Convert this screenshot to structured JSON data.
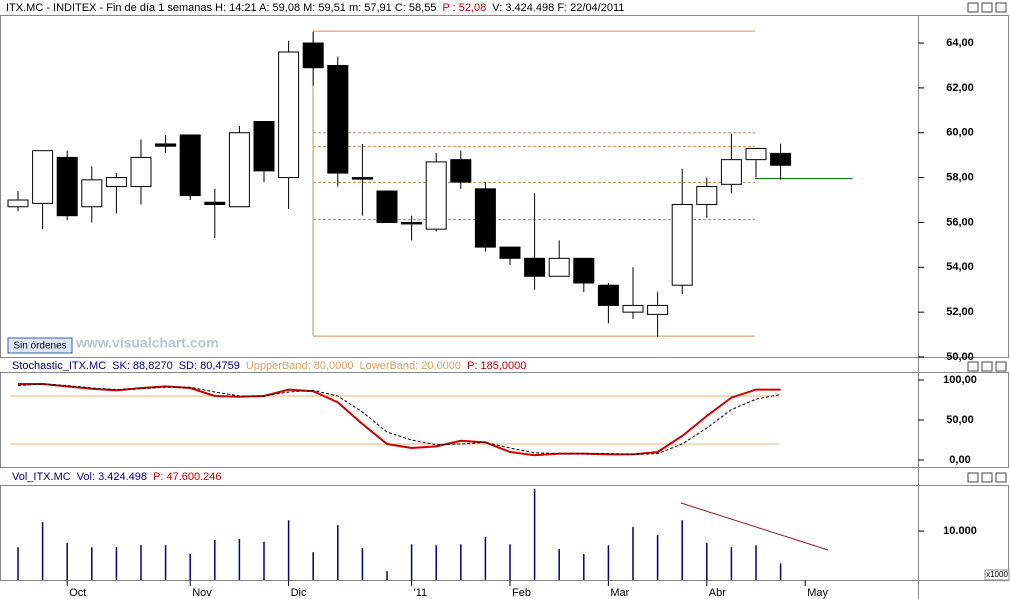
{
  "ui": {
    "button": "Sin órdenes",
    "watermark": "www.visualchart.com"
  },
  "chart_data": [
    {
      "type": "candlestick",
      "header": [
        {
          "text": "ITX.MC - INDITEX - Fin de día 1 semanas  H: 14:21  A: 59,08  M: 59,51  m: 57,91  C: 58,55",
          "color": "#000000"
        },
        {
          "text": "P : 52,08",
          "color": "#cc0000"
        },
        {
          "text": "V: 3.424.498  F: 22/04/2011",
          "color": "#000000"
        }
      ],
      "categories": [
        null,
        null,
        "Oct",
        null,
        null,
        null,
        null,
        "Nov",
        null,
        null,
        null,
        "Dic",
        null,
        null,
        null,
        null,
        "'11",
        null,
        null,
        null,
        "Feb",
        null,
        null,
        null,
        "Mar",
        null,
        null,
        null,
        "Abr",
        null,
        null,
        null,
        "May"
      ],
      "open": [
        56.7,
        56.85,
        58.9,
        56.7,
        57.6,
        57.6,
        59.5,
        59.9,
        56.9,
        56.7,
        60.5,
        58.0,
        64.0,
        63.0,
        58.0,
        57.4,
        56.0,
        55.7,
        58.8,
        57.5,
        54.9,
        54.4,
        53.6,
        54.4,
        53.2,
        52.0,
        51.9,
        53.2,
        56.8,
        57.7,
        58.8,
        59.08,
        null
      ],
      "high": [
        57.4,
        59.2,
        59.2,
        58.5,
        58.2,
        59.7,
        59.9,
        59.9,
        57.5,
        60.3,
        60.5,
        64.1,
        64.5,
        63.4,
        59.5,
        57.4,
        56.3,
        59.1,
        59.2,
        57.8,
        54.9,
        57.3,
        55.2,
        54.4,
        53.3,
        54.0,
        52.9,
        58.4,
        58.0,
        59.96,
        59.3,
        59.51,
        null
      ],
      "low": [
        56.5,
        55.7,
        56.1,
        56.0,
        56.4,
        56.8,
        59.1,
        57.0,
        55.3,
        56.7,
        57.8,
        56.6,
        62.1,
        57.6,
        56.3,
        56.0,
        55.2,
        55.6,
        57.5,
        54.7,
        54.1,
        53.0,
        53.6,
        52.9,
        51.5,
        51.7,
        50.9,
        52.8,
        56.2,
        57.3,
        58.0,
        57.91,
        null
      ],
      "close": [
        57.0,
        59.2,
        56.3,
        57.9,
        58.0,
        58.9,
        59.4,
        57.2,
        56.8,
        60.0,
        58.3,
        63.6,
        62.9,
        58.2,
        57.95,
        56.0,
        55.95,
        58.7,
        57.8,
        54.9,
        54.4,
        53.6,
        54.4,
        53.3,
        52.3,
        52.3,
        52.3,
        56.8,
        57.6,
        58.8,
        59.3,
        58.55,
        null
      ],
      "up_color": "#ffffff",
      "down_color": "#000000",
      "ylim": [
        50,
        65.25
      ],
      "yticks": [
        {
          "value": 50,
          "label": "50,00"
        },
        {
          "value": 52,
          "label": "52,00"
        },
        {
          "value": 54,
          "label": "54,00"
        },
        {
          "value": 56,
          "label": "56,00"
        },
        {
          "value": 58,
          "label": "58,00"
        },
        {
          "value": 60,
          "label": "60,00"
        },
        {
          "value": 62,
          "label": "62,00"
        },
        {
          "value": 64,
          "label": "64,00"
        }
      ],
      "levels": [
        64.53,
        50.93
      ],
      "dashed_levels": [
        60.0,
        59.38,
        57.78,
        56.13
      ],
      "level_color": "#d2915a",
      "green_level": 57.96
    },
    {
      "type": "line",
      "title": "Stochastic_ITX.MC",
      "series": [
        {
          "name": "SK: 88,8270",
          "color": "#cc0000",
          "values": [
            95,
            95,
            92,
            89,
            87,
            90,
            92,
            90,
            80,
            79,
            80,
            88,
            86,
            72,
            45,
            20,
            15,
            17,
            24,
            22,
            10,
            6,
            8,
            8,
            7,
            7,
            10,
            30,
            55,
            78,
            88,
            88,
            null
          ]
        },
        {
          "name": "SD: 80,4759",
          "color": "#000000",
          "values": [
            93,
            95,
            93,
            90,
            88,
            89,
            91,
            91,
            85,
            80,
            80,
            85,
            87,
            80,
            60,
            35,
            25,
            19,
            20,
            22,
            15,
            9,
            8,
            8,
            8,
            7,
            8,
            20,
            40,
            63,
            76,
            82,
            null
          ]
        }
      ],
      "bands": [
        {
          "name": "UppperBand: 80,0000",
          "value": 80
        },
        {
          "name": "LowerBand: 20,0000",
          "value": 20
        }
      ],
      "note": "P: 185,0000",
      "ylim": [
        -8.75,
        110
      ],
      "yticks": [
        {
          "value": 0,
          "label": "0,00"
        },
        {
          "value": 50,
          "label": "50,00"
        },
        {
          "value": 100,
          "label": "100,00"
        }
      ]
    },
    {
      "type": "bar",
      "title": "Vol_ITX.MC",
      "series": [
        {
          "name": "Vol: 3.424.498",
          "color": "#00007f",
          "values": [
            6.7,
            11.8,
            7.6,
            6.7,
            6.7,
            7.1,
            7.1,
            5.3,
            8.2,
            8.4,
            7.8,
            12.2,
            5.7,
            11.2,
            6.5,
            1.8,
            7.3,
            7.1,
            7.3,
            8.8,
            7.3,
            18.6,
            6.3,
            5.3,
            7.1,
            10.8,
            9.2,
            12.2,
            7.6,
            6.7,
            7.1,
            3.42,
            null
          ]
        }
      ],
      "note": "P: 47.600.246",
      "unit": "x1000",
      "ylim": [
        0,
        19
      ],
      "yticks": [
        {
          "value": 10,
          "label": "10.000"
        }
      ]
    }
  ]
}
